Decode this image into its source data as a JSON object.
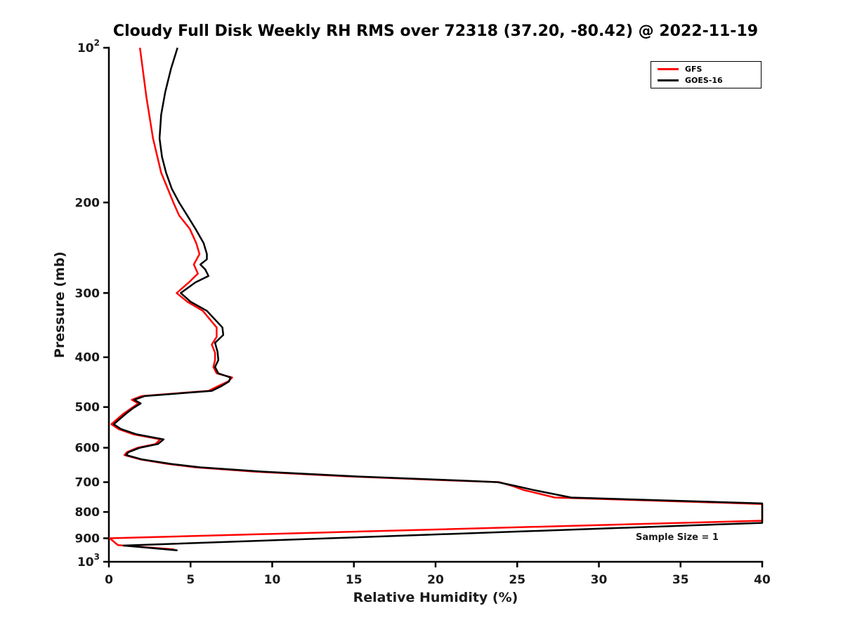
{
  "chart_data": {
    "type": "line",
    "title": "Cloudy Full Disk Weekly RH RMS over 72318 (37.20, -80.42) @ 2022-11-19",
    "xlabel": "Relative Humidity (%)",
    "ylabel": "Pressure (mb)",
    "xlim": [
      0,
      40
    ],
    "xticks": [
      0,
      5,
      10,
      15,
      20,
      25,
      30,
      35,
      40
    ],
    "yscale": "log",
    "y_axis_inverted": true,
    "ylim": [
      100,
      1000
    ],
    "yticks": [
      {
        "p": 100,
        "label": "10^2"
      },
      {
        "p": 200,
        "label": "200"
      },
      {
        "p": 300,
        "label": "300"
      },
      {
        "p": 400,
        "label": "400"
      },
      {
        "p": 500,
        "label": "500"
      },
      {
        "p": 600,
        "label": "600"
      },
      {
        "p": 700,
        "label": "700"
      },
      {
        "p": 800,
        "label": "800"
      },
      {
        "p": 900,
        "label": "900"
      },
      {
        "p": 1000,
        "label": "10^3"
      }
    ],
    "grid": false,
    "legend_position": "upper right",
    "annotation": "Sample Size = 1",
    "series": [
      {
        "name": "GFS",
        "color": "#ff0000",
        "linewidth": 2.5,
        "points": [
          [
            100,
            1.9
          ],
          [
            125,
            2.3
          ],
          [
            150,
            2.7
          ],
          [
            175,
            3.2
          ],
          [
            200,
            3.95
          ],
          [
            212,
            4.3
          ],
          [
            225,
            4.95
          ],
          [
            240,
            5.35
          ],
          [
            252,
            5.55
          ],
          [
            264,
            5.2
          ],
          [
            275,
            5.45
          ],
          [
            286,
            4.9
          ],
          [
            300,
            4.15
          ],
          [
            312,
            4.8
          ],
          [
            325,
            5.75
          ],
          [
            350,
            6.6
          ],
          [
            365,
            6.6
          ],
          [
            378,
            6.3
          ],
          [
            392,
            6.5
          ],
          [
            405,
            6.5
          ],
          [
            418,
            6.4
          ],
          [
            430,
            6.6
          ],
          [
            438,
            7.55
          ],
          [
            446,
            7.3
          ],
          [
            455,
            6.7
          ],
          [
            465,
            6.1
          ],
          [
            476,
            2.0
          ],
          [
            484,
            1.4
          ],
          [
            492,
            1.8
          ],
          [
            502,
            1.4
          ],
          [
            515,
            0.9
          ],
          [
            540,
            0.15
          ],
          [
            552,
            0.6
          ],
          [
            565,
            1.5
          ],
          [
            578,
            3.15
          ],
          [
            590,
            2.85
          ],
          [
            600,
            1.75
          ],
          [
            612,
            1.1
          ],
          [
            620,
            0.95
          ],
          [
            632,
            1.9
          ],
          [
            645,
            3.6
          ],
          [
            655,
            5.3
          ],
          [
            668,
            9.0
          ],
          [
            682,
            14.5
          ],
          [
            695,
            21.0
          ],
          [
            700,
            23.9
          ],
          [
            712,
            24.7
          ],
          [
            725,
            25.4
          ],
          [
            738,
            26.4
          ],
          [
            750,
            27.3
          ],
          [
            772,
            40.0
          ],
          [
            832,
            40.0
          ],
          [
            900,
            0.05
          ],
          [
            928,
            0.55
          ],
          [
            946,
            4.0
          ]
        ]
      },
      {
        "name": "GOES-16",
        "color": "#000000",
        "linewidth": 2.5,
        "points": [
          [
            100,
            4.2
          ],
          [
            110,
            3.8
          ],
          [
            122,
            3.45
          ],
          [
            135,
            3.2
          ],
          [
            150,
            3.1
          ],
          [
            163,
            3.25
          ],
          [
            175,
            3.5
          ],
          [
            188,
            3.85
          ],
          [
            200,
            4.3
          ],
          [
            212,
            4.8
          ],
          [
            225,
            5.3
          ],
          [
            240,
            5.8
          ],
          [
            252,
            6.0
          ],
          [
            258,
            6.0
          ],
          [
            264,
            5.6
          ],
          [
            270,
            5.9
          ],
          [
            278,
            6.1
          ],
          [
            286,
            5.3
          ],
          [
            300,
            4.4
          ],
          [
            312,
            5.0
          ],
          [
            325,
            6.0
          ],
          [
            350,
            6.95
          ],
          [
            362,
            7.0
          ],
          [
            375,
            6.5
          ],
          [
            390,
            6.65
          ],
          [
            405,
            6.7
          ],
          [
            418,
            6.5
          ],
          [
            430,
            6.7
          ],
          [
            438,
            7.45
          ],
          [
            446,
            7.35
          ],
          [
            455,
            6.9
          ],
          [
            465,
            6.3
          ],
          [
            476,
            2.2
          ],
          [
            484,
            1.55
          ],
          [
            492,
            1.95
          ],
          [
            502,
            1.5
          ],
          [
            515,
            1.05
          ],
          [
            540,
            0.3
          ],
          [
            552,
            0.75
          ],
          [
            565,
            1.7
          ],
          [
            578,
            3.35
          ],
          [
            590,
            3.0
          ],
          [
            600,
            1.9
          ],
          [
            612,
            1.2
          ],
          [
            620,
            1.05
          ],
          [
            632,
            2.0
          ],
          [
            645,
            3.8
          ],
          [
            655,
            5.6
          ],
          [
            668,
            9.5
          ],
          [
            682,
            15.0
          ],
          [
            695,
            21.5
          ],
          [
            700,
            23.8
          ],
          [
            712,
            24.9
          ],
          [
            725,
            26.0
          ],
          [
            738,
            27.2
          ],
          [
            750,
            28.3
          ],
          [
            770,
            40.0
          ],
          [
            840,
            40.0
          ],
          [
            930,
            0.9
          ],
          [
            950,
            4.2
          ]
        ]
      }
    ]
  }
}
